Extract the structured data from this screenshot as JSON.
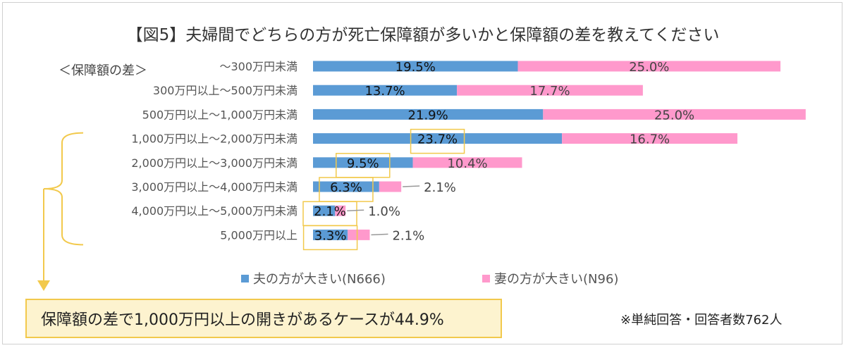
{
  "title": "【図5】夫婦間でどちらの方が死亡保障額が多いかと保障額の差を教えてください",
  "section_label": "＜保障額の差＞",
  "chart_data": {
    "type": "bar",
    "orientation": "horizontal",
    "stacked": true,
    "categories": [
      "～300万円未満",
      "300万円以上～500万円未満",
      "500万円以上～1,000万円未満",
      "1,000万円以上～2,000万円未満",
      "2,000万円以上～3,000万円未満",
      "3,000万円以上～4,000万円未満",
      "4,000万円以上～5,000万円未満",
      "5,000万円以上"
    ],
    "series": [
      {
        "name": "夫の方が大きい(N666)",
        "color": "#5b9bd5",
        "values": [
          19.5,
          13.7,
          21.9,
          23.7,
          9.5,
          6.3,
          2.1,
          3.3
        ],
        "labels": [
          "19.5%",
          "13.7%",
          "21.9%",
          "23.7%",
          "9.5%",
          "6.3%",
          "2.1%",
          "3.3%"
        ]
      },
      {
        "name": "妻の方が大きい(N96)",
        "color": "#ff99cc",
        "values": [
          25.0,
          17.7,
          25.0,
          16.7,
          10.4,
          2.1,
          1.0,
          2.1
        ],
        "labels": [
          "25.0%",
          "17.7%",
          "25.0%",
          "16.7%",
          "10.4%",
          "2.1%",
          "1.0%",
          "2.1%"
        ]
      }
    ],
    "highlighted_categories": [
      3,
      4,
      5,
      6,
      7
    ],
    "legend_position": "bottom",
    "grid": false
  },
  "callout": "保障額の差で1,000万円以上の開きがあるケースが44.9%",
  "note": "※単純回答・回答者数762人",
  "colors": {
    "highlight": "#f2c94c",
    "callout_bg": "#fdf3cf"
  }
}
